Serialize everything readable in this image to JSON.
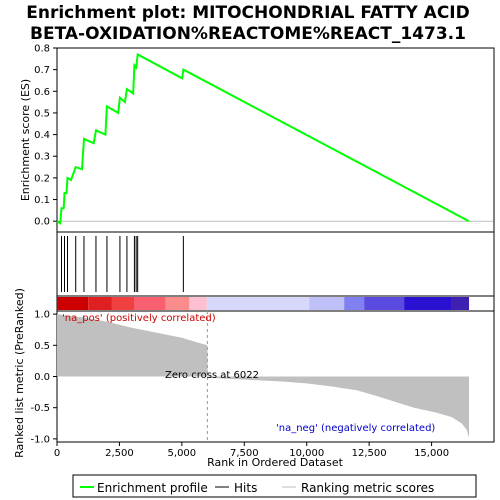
{
  "title_line1": "Enrichment plot: MITOCHONDRIAL FATTY ACID",
  "title_line2": "BETA-OXIDATION%REACTOME%REACT_1473.1",
  "chart_data": {
    "type": "line",
    "top_panel": {
      "ylabel": "Enrichment score (ES)",
      "ylim": [
        -0.05,
        0.8
      ],
      "yticks": [
        "0.0",
        "0.1",
        "0.2",
        "0.3",
        "0.4",
        "0.5",
        "0.6",
        "0.7",
        "0.8"
      ],
      "series_name": "Enrichment profile",
      "color": "#00ff00",
      "points": [
        [
          0,
          0.0
        ],
        [
          130,
          -0.01
        ],
        [
          180,
          0.06
        ],
        [
          270,
          0.06
        ],
        [
          300,
          0.13
        ],
        [
          380,
          0.13
        ],
        [
          420,
          0.2
        ],
        [
          560,
          0.19
        ],
        [
          750,
          0.25
        ],
        [
          1000,
          0.24
        ],
        [
          1080,
          0.38
        ],
        [
          1470,
          0.36
        ],
        [
          1560,
          0.42
        ],
        [
          1940,
          0.4
        ],
        [
          2000,
          0.53
        ],
        [
          2450,
          0.5
        ],
        [
          2520,
          0.57
        ],
        [
          2720,
          0.55
        ],
        [
          2800,
          0.61
        ],
        [
          3050,
          0.59
        ],
        [
          3100,
          0.72
        ],
        [
          3170,
          0.71
        ],
        [
          3230,
          0.77
        ],
        [
          5010,
          0.66
        ],
        [
          5060,
          0.7
        ],
        [
          16500,
          0.0
        ]
      ],
      "hits": [
        180,
        300,
        420,
        750,
        1080,
        1560,
        2000,
        2520,
        2800,
        3100,
        3170,
        3230,
        5060
      ]
    },
    "bottom_panel": {
      "ylabel": "Ranked list metric (PreRanked)",
      "ylim": [
        -1.05,
        1.05
      ],
      "yticks": [
        "-1.0",
        "-0.5",
        "0.0",
        "0.5",
        "1.0"
      ],
      "metric_points": [
        [
          0,
          1.0
        ],
        [
          300,
          0.98
        ],
        [
          1000,
          0.95
        ],
        [
          2000,
          0.88
        ],
        [
          3000,
          0.78
        ],
        [
          4000,
          0.7
        ],
        [
          5000,
          0.62
        ],
        [
          5600,
          0.55
        ],
        [
          6022,
          0.5
        ],
        [
          6030,
          -0.02
        ],
        [
          7000,
          -0.04
        ],
        [
          8000,
          -0.06
        ],
        [
          9000,
          -0.08
        ],
        [
          10000,
          -0.11
        ],
        [
          11000,
          -0.16
        ],
        [
          12000,
          -0.22
        ],
        [
          12700,
          -0.3
        ],
        [
          13500,
          -0.4
        ],
        [
          14300,
          -0.5
        ],
        [
          15200,
          -0.58
        ],
        [
          15800,
          -0.65
        ],
        [
          16200,
          -0.75
        ],
        [
          16400,
          -0.85
        ],
        [
          16500,
          -0.98
        ]
      ],
      "zero_cross_label": "Zero cross at 6022",
      "zero_cross_x": 6022,
      "pos_label": "'na_pos' (positively correlated)",
      "neg_label": "'na_neg' (negatively correlated)",
      "pos_color": "#ff0000",
      "neg_color": "#0000ff"
    },
    "xlabel": "Rank in Ordered Dataset",
    "xlim": [
      0,
      17500
    ],
    "xticks": [
      "0",
      "2,500",
      "5,000",
      "7,500",
      "10,000",
      "12,500",
      "15,000"
    ],
    "heatbar_segments": [
      {
        "x0": 0,
        "x1": 1250,
        "color": "#cc0000"
      },
      {
        "x0": 1250,
        "x1": 2200,
        "color": "#e02020"
      },
      {
        "x0": 2200,
        "x1": 3100,
        "color": "#f04040"
      },
      {
        "x0": 3100,
        "x1": 4350,
        "color": "#f86070"
      },
      {
        "x0": 4350,
        "x1": 5300,
        "color": "#fa8c8c"
      },
      {
        "x0": 5300,
        "x1": 6000,
        "color": "#fcc0d0"
      },
      {
        "x0": 6000,
        "x1": 10100,
        "color": "#d8d8fc"
      },
      {
        "x0": 10100,
        "x1": 11500,
        "color": "#c0c0f8"
      },
      {
        "x0": 11500,
        "x1": 12300,
        "color": "#8080f0"
      },
      {
        "x0": 12300,
        "x1": 13900,
        "color": "#5a4ae0"
      },
      {
        "x0": 13900,
        "x1": 15800,
        "color": "#2a10d0"
      },
      {
        "x0": 15800,
        "x1": 16500,
        "color": "#4020b0"
      }
    ]
  },
  "legend": {
    "enrichment": "Enrichment profile",
    "hits": "Hits",
    "ranking": "Ranking metric scores"
  }
}
